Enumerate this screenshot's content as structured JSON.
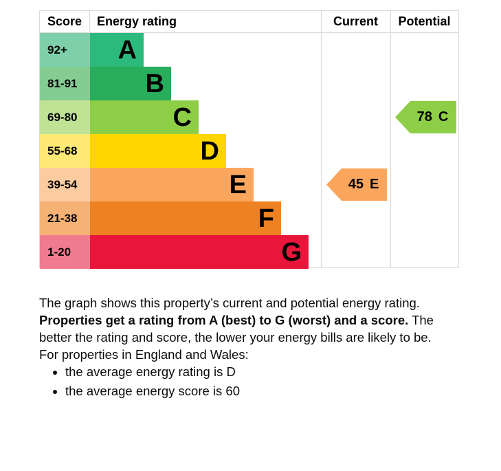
{
  "chart_data": {
    "type": "bar",
    "subtype": "epc-energy-rating",
    "columns": {
      "score": "Score",
      "energy_rating": "Energy rating",
      "current": "Current",
      "potential": "Potential"
    },
    "bands": [
      {
        "letter": "A",
        "score_range": "92+",
        "color": "#2cba7c",
        "score_bg": "#7ed0ab"
      },
      {
        "letter": "B",
        "score_range": "81-91",
        "color": "#27ad5b",
        "score_bg": "#85cc92"
      },
      {
        "letter": "C",
        "score_range": "69-80",
        "color": "#8dce46",
        "score_bg": "#bfe294"
      },
      {
        "letter": "D",
        "score_range": "55-68",
        "color": "#ffd500",
        "score_bg": "#ffe976"
      },
      {
        "letter": "E",
        "score_range": "39-54",
        "color": "#fba65c",
        "score_bg": "#fccb9f"
      },
      {
        "letter": "F",
        "score_range": "21-38",
        "color": "#ee8122",
        "score_bg": "#f5b274"
      },
      {
        "letter": "G",
        "score_range": "1-20",
        "color": "#e9153b",
        "score_bg": "#f17b8e"
      }
    ],
    "current": {
      "score": 45,
      "band": "E"
    },
    "potential": {
      "score": 78,
      "band": "C"
    },
    "grid_color": "#d9d9d9",
    "text_color": "#0b0c0c"
  },
  "body": {
    "p1": "The graph shows this property’s current and potential energy rating.",
    "p2_bold": "Properties get a rating from A (best) to G (worst) and a score.",
    "p2_rest": " The better the rating and score, the lower your energy bills are likely to be.",
    "p3": "For properties in England and Wales:",
    "bullets": [
      "the average energy rating is D",
      "the average energy score is 60"
    ]
  }
}
